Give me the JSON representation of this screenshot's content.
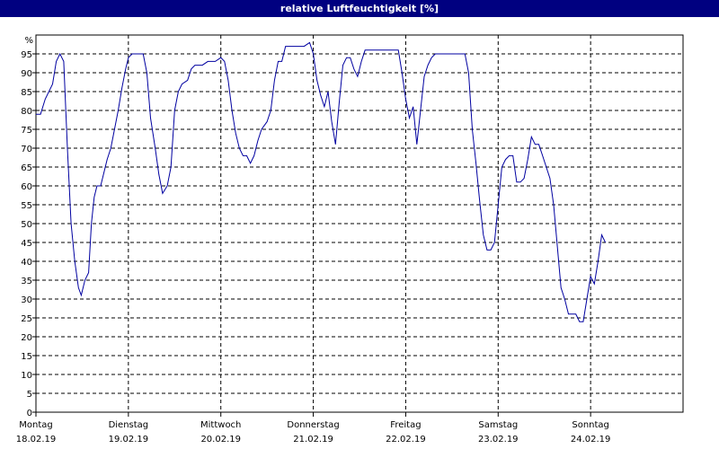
{
  "chart_data": {
    "type": "line",
    "title": "relative Luftfeuchtigkeit [%]",
    "ylabel": "%",
    "ylim": [
      0,
      100
    ],
    "yticks": [
      0,
      5,
      10,
      15,
      20,
      25,
      30,
      35,
      40,
      45,
      50,
      55,
      60,
      65,
      70,
      75,
      80,
      85,
      90,
      95
    ],
    "xlim": [
      0,
      7
    ],
    "grid": true,
    "x_unit": "days since Montag 18.02.19 00:00",
    "x_ticks": [
      {
        "day": "Montag",
        "date": "18.02.19"
      },
      {
        "day": "Dienstag",
        "date": "19.02.19"
      },
      {
        "day": "Mittwoch",
        "date": "20.02.19"
      },
      {
        "day": "Donnerstag",
        "date": "21.02.19"
      },
      {
        "day": "Freitag",
        "date": "22.02.19"
      },
      {
        "day": "Samstag",
        "date": "23.02.19"
      },
      {
        "day": "Sonntag",
        "date": "24.02.19"
      }
    ],
    "series": [
      {
        "color": "#0000a0",
        "points": [
          [
            0.0,
            79
          ],
          [
            0.05,
            79
          ],
          [
            0.1,
            83
          ],
          [
            0.18,
            87
          ],
          [
            0.22,
            93
          ],
          [
            0.26,
            95
          ],
          [
            0.3,
            93
          ],
          [
            0.34,
            70
          ],
          [
            0.38,
            50
          ],
          [
            0.42,
            40
          ],
          [
            0.46,
            33
          ],
          [
            0.49,
            31
          ],
          [
            0.53,
            35
          ],
          [
            0.57,
            37
          ],
          [
            0.6,
            50
          ],
          [
            0.63,
            57
          ],
          [
            0.66,
            60
          ],
          [
            0.7,
            60
          ],
          [
            0.73,
            63
          ],
          [
            0.77,
            67
          ],
          [
            0.81,
            70
          ],
          [
            0.85,
            75
          ],
          [
            0.89,
            80
          ],
          [
            0.93,
            86
          ],
          [
            0.97,
            91
          ],
          [
            1.0,
            94
          ],
          [
            1.04,
            95
          ],
          [
            1.1,
            95
          ],
          [
            1.16,
            95
          ],
          [
            1.2,
            90
          ],
          [
            1.24,
            78
          ],
          [
            1.29,
            70
          ],
          [
            1.33,
            63
          ],
          [
            1.37,
            58
          ],
          [
            1.42,
            60
          ],
          [
            1.46,
            65
          ],
          [
            1.5,
            80
          ],
          [
            1.54,
            85
          ],
          [
            1.58,
            87
          ],
          [
            1.64,
            88
          ],
          [
            1.68,
            91
          ],
          [
            1.72,
            92
          ],
          [
            1.8,
            92
          ],
          [
            1.86,
            93
          ],
          [
            1.94,
            93
          ],
          [
            2.0,
            94
          ],
          [
            2.04,
            93
          ],
          [
            2.08,
            88
          ],
          [
            2.12,
            80
          ],
          [
            2.16,
            74
          ],
          [
            2.2,
            70
          ],
          [
            2.24,
            68
          ],
          [
            2.28,
            68
          ],
          [
            2.32,
            66
          ],
          [
            2.36,
            68
          ],
          [
            2.4,
            72
          ],
          [
            2.44,
            75
          ],
          [
            2.5,
            77
          ],
          [
            2.54,
            80
          ],
          [
            2.58,
            88
          ],
          [
            2.62,
            93
          ],
          [
            2.66,
            93
          ],
          [
            2.7,
            97
          ],
          [
            2.76,
            97
          ],
          [
            2.9,
            97
          ],
          [
            2.96,
            98
          ],
          [
            3.0,
            95
          ],
          [
            3.04,
            88
          ],
          [
            3.08,
            84
          ],
          [
            3.12,
            81
          ],
          [
            3.16,
            85
          ],
          [
            3.2,
            77
          ],
          [
            3.24,
            71
          ],
          [
            3.28,
            82
          ],
          [
            3.32,
            92
          ],
          [
            3.36,
            94
          ],
          [
            3.4,
            94
          ],
          [
            3.44,
            91
          ],
          [
            3.48,
            89
          ],
          [
            3.52,
            93
          ],
          [
            3.56,
            96
          ],
          [
            3.62,
            96
          ],
          [
            3.8,
            96
          ],
          [
            3.92,
            96
          ],
          [
            3.96,
            90
          ],
          [
            4.0,
            83
          ],
          [
            4.04,
            78
          ],
          [
            4.08,
            81
          ],
          [
            4.12,
            71
          ],
          [
            4.16,
            80
          ],
          [
            4.2,
            89
          ],
          [
            4.24,
            92
          ],
          [
            4.28,
            94
          ],
          [
            4.32,
            95
          ],
          [
            4.4,
            95
          ],
          [
            4.6,
            95
          ],
          [
            4.64,
            95
          ],
          [
            4.68,
            90
          ],
          [
            4.72,
            75
          ],
          [
            4.76,
            66
          ],
          [
            4.8,
            56
          ],
          [
            4.84,
            47
          ],
          [
            4.88,
            43
          ],
          [
            4.92,
            43
          ],
          [
            4.96,
            45
          ],
          [
            5.0,
            55
          ],
          [
            5.04,
            65
          ],
          [
            5.08,
            67
          ],
          [
            5.12,
            68
          ],
          [
            5.16,
            68
          ],
          [
            5.2,
            61
          ],
          [
            5.24,
            61
          ],
          [
            5.28,
            62
          ],
          [
            5.32,
            67
          ],
          [
            5.36,
            73
          ],
          [
            5.4,
            71
          ],
          [
            5.44,
            71
          ],
          [
            5.48,
            68
          ],
          [
            5.52,
            65
          ],
          [
            5.56,
            62
          ],
          [
            5.6,
            55
          ],
          [
            5.64,
            44
          ],
          [
            5.68,
            33
          ],
          [
            5.72,
            30
          ],
          [
            5.76,
            26
          ],
          [
            5.8,
            26
          ],
          [
            5.84,
            26
          ],
          [
            5.88,
            24
          ],
          [
            5.92,
            24
          ],
          [
            5.96,
            30
          ],
          [
            6.0,
            36
          ],
          [
            6.04,
            34
          ],
          [
            6.08,
            40
          ],
          [
            6.12,
            47
          ],
          [
            6.16,
            45
          ]
        ]
      }
    ]
  }
}
